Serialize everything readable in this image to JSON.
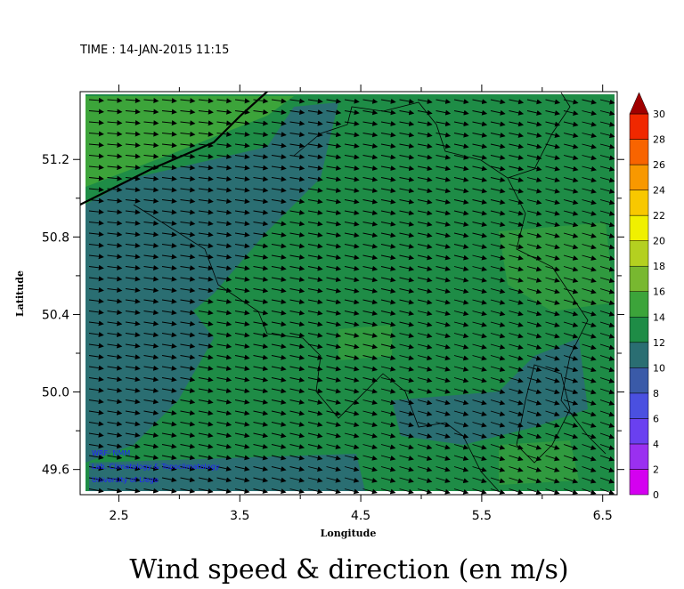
{
  "header": {
    "time": "TIME : 14-JAN-2015 11:15"
  },
  "map": {
    "xlabel": "Longitude",
    "ylabel": "Latitude",
    "xlim": [
      2.18,
      6.62
    ],
    "ylim": [
      49.47,
      51.55
    ],
    "xticks": [
      2.5,
      3.5,
      4.5,
      5.5,
      6.5
    ],
    "yticks": [
      {
        "value": 49.6,
        "label": "49.6"
      },
      {
        "value": 50.0,
        "label": "50.0"
      },
      {
        "value": 50.4,
        "label": "50.4"
      },
      {
        "value": 50.8,
        "label": "50.8"
      },
      {
        "value": 51.2,
        "label": "51.2"
      }
    ],
    "credits": [
      "WRF- NMM",
      "Lab. Climatology & Topoclimatology",
      "University of Liege"
    ]
  },
  "colorbar": {
    "ticks": [
      0,
      2,
      4,
      6,
      8,
      10,
      12,
      14,
      16,
      18,
      20,
      22,
      24,
      26,
      28,
      30
    ],
    "colors": [
      "#d400f0",
      "#9a30f0",
      "#6a40f0",
      "#4a50e0",
      "#3a5aa8",
      "#2a6e72",
      "#1e8c46",
      "#3ca43a",
      "#78b830",
      "#b4d020",
      "#f0f000",
      "#f8c800",
      "#f89800",
      "#f86400",
      "#f02800",
      "#c80000"
    ],
    "max_color": "#a00000"
  },
  "title": "Wind speed & direction (en m/s)"
}
